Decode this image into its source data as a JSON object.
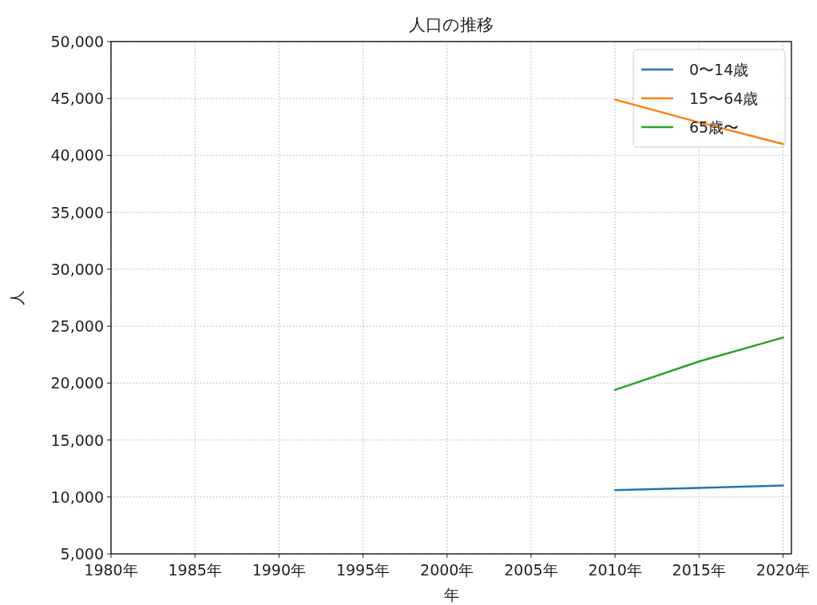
{
  "chart_data": {
    "type": "line",
    "title": "人口の推移",
    "xlabel": "年",
    "ylabel": "人",
    "x": [
      2010,
      2015,
      2020
    ],
    "series": [
      {
        "name": "0〜14歳",
        "color": "#1f77b4",
        "values": [
          10600,
          10800,
          11000
        ]
      },
      {
        "name": "15〜64歳",
        "color": "#ff7f0e",
        "values": [
          44900,
          42900,
          41000
        ]
      },
      {
        "name": "65歳〜",
        "color": "#2ca02c",
        "values": [
          19400,
          21900,
          24000
        ]
      }
    ],
    "xlim": [
      1980,
      2020.5
    ],
    "xticks": [
      {
        "value": 1980,
        "label": "1980年"
      },
      {
        "value": 1985,
        "label": "1985年"
      },
      {
        "value": 1990,
        "label": "1990年"
      },
      {
        "value": 1995,
        "label": "1995年"
      },
      {
        "value": 2000,
        "label": "2000年"
      },
      {
        "value": 2005,
        "label": "2005年"
      },
      {
        "value": 2010,
        "label": "2010年"
      },
      {
        "value": 2015,
        "label": "2015年"
      },
      {
        "value": 2020,
        "label": "2020年"
      }
    ],
    "ylim": [
      5000,
      50000
    ],
    "yticks": [
      {
        "value": 5000,
        "label": "5,000"
      },
      {
        "value": 10000,
        "label": "10,000"
      },
      {
        "value": 15000,
        "label": "15,000"
      },
      {
        "value": 20000,
        "label": "20,000"
      },
      {
        "value": 25000,
        "label": "25,000"
      },
      {
        "value": 30000,
        "label": "30,000"
      },
      {
        "value": 35000,
        "label": "35,000"
      },
      {
        "value": 40000,
        "label": "40,000"
      },
      {
        "value": 45000,
        "label": "45,000"
      },
      {
        "value": 50000,
        "label": "50,000"
      }
    ],
    "grid": true,
    "legend": "top right",
    "line_style": "solid",
    "marker": "none"
  }
}
